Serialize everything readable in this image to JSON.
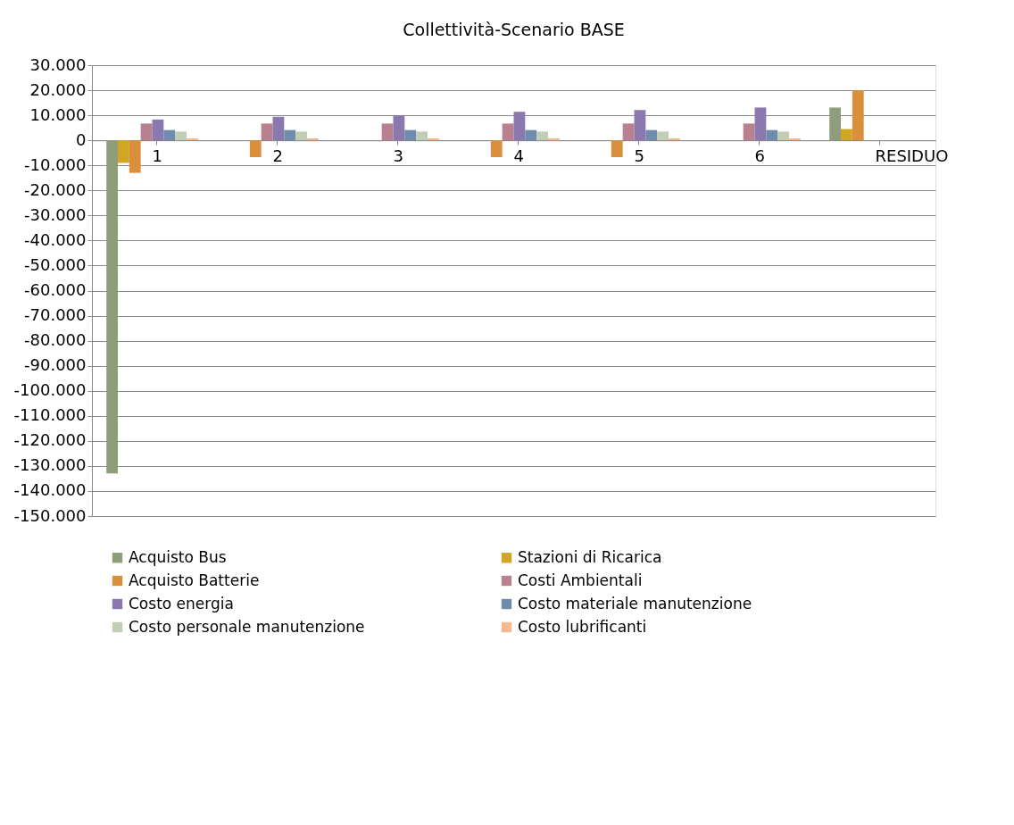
{
  "chart_data": {
    "type": "bar",
    "title": "Collettività-Scenario BASE",
    "categories": [
      "1",
      "2",
      "3",
      "4",
      "5",
      "6",
      "RESIDUO"
    ],
    "series": [
      {
        "name": "Acquisto Bus",
        "color": "#8f9e7a",
        "values": [
          -133000,
          null,
          null,
          null,
          null,
          null,
          13100
        ]
      },
      {
        "name": "Stazioni di Ricarica",
        "color": "#d0a624",
        "values": [
          -9000,
          null,
          null,
          null,
          null,
          null,
          4500
        ]
      },
      {
        "name": "Acquisto Batterie",
        "color": "#d98f3c",
        "values": [
          -13000,
          -6700,
          null,
          -6700,
          -6700,
          null,
          20000
        ]
      },
      {
        "name": "Costi Ambientali",
        "color": "#b9808f",
        "values": [
          6700,
          6700,
          6700,
          6700,
          6700,
          6700,
          null
        ]
      },
      {
        "name": "Costo energia",
        "color": "#8b78ae",
        "values": [
          8300,
          9400,
          10000,
          11400,
          12100,
          13100,
          null
        ]
      },
      {
        "name": "Costo materiale manutenzione",
        "color": "#6f8cad",
        "values": [
          4100,
          4100,
          4100,
          4100,
          4100,
          4100,
          null
        ]
      },
      {
        "name": "Costo personale manutenzione",
        "color": "#c1cdb5",
        "values": [
          3500,
          3500,
          3500,
          3500,
          3500,
          3500,
          null
        ]
      },
      {
        "name": "Costo lubrificanti",
        "color": "#f6b98d",
        "values": [
          800,
          800,
          800,
          800,
          800,
          800,
          null
        ]
      }
    ],
    "ylim": [
      -150000,
      30000
    ],
    "yticks": [
      {
        "value": 30000,
        "label": "30.000"
      },
      {
        "value": 20000,
        "label": "20.000"
      },
      {
        "value": 10000,
        "label": "10.000"
      },
      0,
      {
        "value": -10000,
        "label": "-10.000"
      },
      {
        "value": -20000,
        "label": "-20.000"
      },
      {
        "value": -30000,
        "label": "-30.000"
      },
      {
        "value": -40000,
        "label": "-40.000"
      },
      {
        "value": -50000,
        "label": "-50.000"
      },
      {
        "value": -60000,
        "label": "-60.000"
      },
      {
        "value": -70000,
        "label": "-70.000"
      },
      {
        "value": -80000,
        "label": "-80.000"
      },
      {
        "value": -90000,
        "label": "-90.000"
      },
      {
        "value": -100000,
        "label": "-100.000"
      },
      {
        "value": -110000,
        "label": "-110.000"
      },
      {
        "value": -120000,
        "label": "-120.000"
      },
      {
        "value": -130000,
        "label": "-130.000"
      },
      {
        "value": -140000,
        "label": "-140.000"
      },
      {
        "value": -150000,
        "label": "-150.000"
      }
    ],
    "grid": "y",
    "legend": "bottom"
  }
}
